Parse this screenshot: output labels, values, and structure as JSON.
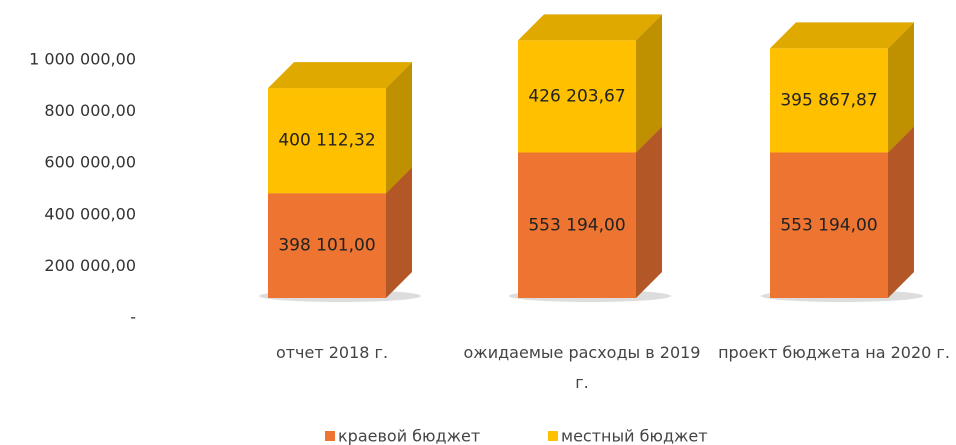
{
  "chart_data": {
    "type": "bar3d_stacked",
    "categories": [
      "отчет 2018 г.",
      "ожидаемые расходы в 2019 г.",
      "проект бюджета на 2020 г."
    ],
    "series": [
      {
        "name": "краевой бюджет",
        "color": "#ee7432",
        "values": [
          398101,
          553194,
          553194
        ],
        "value_labels": [
          "398 101,00",
          "553 194,00",
          "553 194,00"
        ]
      },
      {
        "name": "местный бюджет",
        "color": "#ffc000",
        "values": [
          400112.32,
          426203.67,
          395867.87
        ],
        "value_labels": [
          "400 112,32",
          "426 203,67",
          "395 867,87"
        ]
      }
    ],
    "ylim": [
      0,
      1000000
    ],
    "yticks": [
      {
        "value": 0,
        "label": "-"
      },
      {
        "value": 200000,
        "label": "200 000,00"
      },
      {
        "value": 400000,
        "label": "400 000,00"
      },
      {
        "value": 600000,
        "label": "600 000,00"
      },
      {
        "value": 800000,
        "label": "800 000,00"
      },
      {
        "value": 1000000,
        "label": "1 000 000,00"
      }
    ],
    "legend": "bottom"
  }
}
